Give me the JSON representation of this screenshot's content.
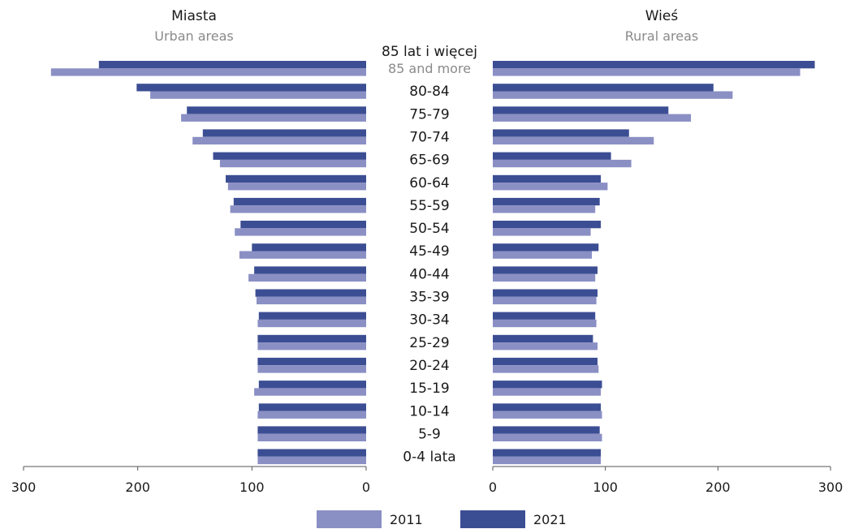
{
  "chart_data": {
    "type": "bar",
    "orientation": "horizontal",
    "layout": "population-pyramid",
    "colors": {
      "2011": "#8a8fc4",
      "2021": "#3c4e93"
    },
    "legend": {
      "position": "bottom",
      "entries": [
        "2011",
        "2021"
      ]
    },
    "categories": [
      "85 lat i więcej",
      "80-84",
      "75-79",
      "70-74",
      "65-69",
      "60-64",
      "55-59",
      "50-54",
      "45-49",
      "40-44",
      "35-39",
      "30-34",
      "25-29",
      "20-24",
      "15-19",
      "10-14",
      "5-9",
      "0-4 lata"
    ],
    "category_sublabels": [
      "85 and more",
      "",
      "",
      "",
      "",
      "",
      "",
      "",
      "",
      "",
      "",
      "",
      "",
      "",
      "",
      "",
      "",
      ""
    ],
    "panels": [
      {
        "title": "Miasta",
        "subtitle": "Urban areas",
        "xlim": [
          300,
          0
        ],
        "ticks": [
          300,
          200,
          100,
          0
        ],
        "series": [
          {
            "name": "2021",
            "values": [
              234,
              201,
              157,
              143,
              134,
              123,
              116,
              110,
              100,
              98,
              97,
              94,
              95,
              95,
              94,
              94,
              95,
              95
            ]
          },
          {
            "name": "2011",
            "values": [
              276,
              189,
              162,
              152,
              128,
              121,
              119,
              115,
              111,
              103,
              96,
              95,
              95,
              95,
              98,
              95,
              95,
              95
            ]
          }
        ]
      },
      {
        "title": "Wieś",
        "subtitle": "Rural areas",
        "xlim": [
          0,
          300
        ],
        "ticks": [
          0,
          100,
          200,
          300
        ],
        "series": [
          {
            "name": "2021",
            "values": [
              286,
              196,
              156,
              121,
              105,
              96,
              95,
              96,
              94,
              93,
              93,
              91,
              89,
              93,
              97,
              96,
              95,
              96
            ]
          },
          {
            "name": "2011",
            "values": [
              273,
              213,
              176,
              143,
              123,
              102,
              91,
              87,
              88,
              91,
              92,
              92,
              93,
              94,
              96,
              97,
              97,
              96
            ]
          }
        ]
      }
    ]
  }
}
